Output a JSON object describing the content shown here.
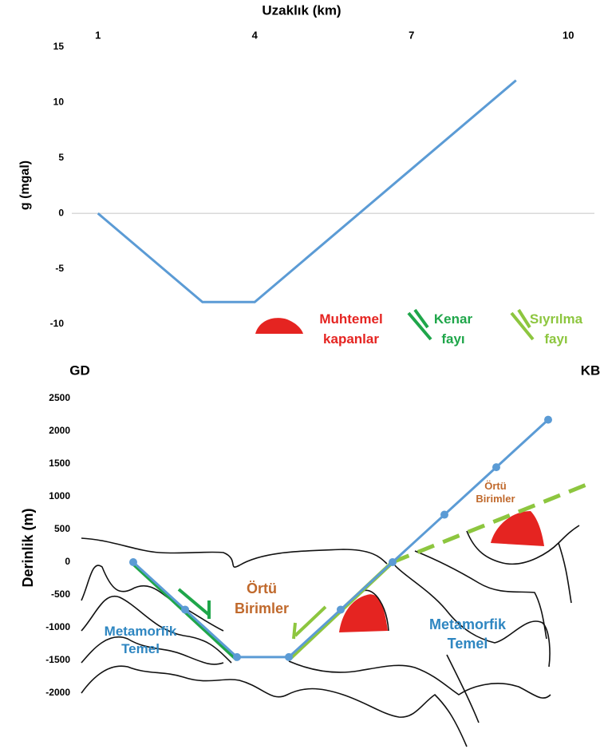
{
  "chart_data": [
    {
      "type": "line",
      "x_label": "Uzaklık (km)",
      "y_label": "g (mgal)",
      "x": [
        1,
        3,
        4,
        9
      ],
      "values": [
        0,
        -8,
        -8,
        12
      ],
      "color": "#5b9bd5",
      "xlim": [
        0.5,
        10.5
      ],
      "xticks": [
        1,
        4,
        7,
        10
      ],
      "ylim": [
        -10,
        15
      ],
      "yticks": [
        -10,
        -5,
        0,
        5,
        10,
        15
      ],
      "grid": false
    },
    {
      "type": "line",
      "y_label": "Derinlik (m)",
      "x": [
        1,
        2,
        3,
        4,
        5,
        6,
        7,
        8,
        9
      ],
      "values": [
        0,
        -725,
        -1450,
        -1450,
        -725,
        0,
        725,
        1450,
        2175
      ],
      "color": "#5b9bd5",
      "xlim": [
        0,
        10
      ],
      "ylim": [
        -2000,
        2500
      ],
      "yticks": [
        -2000,
        -1500,
        -1000,
        -500,
        0,
        500,
        1000,
        1500,
        2000,
        2500
      ],
      "grid": false,
      "annotations": {
        "left": "GD",
        "right": "KB",
        "cover": [
          [
            "Örtü",
            "Birimler"
          ],
          [
            "Örtü",
            "Birimler"
          ]
        ],
        "basement": [
          [
            "Metamorfik",
            "Temel"
          ],
          [
            "Metamorfik",
            "Temel"
          ]
        ]
      },
      "legend": [
        {
          "lines": [
            "Muhtemel",
            "kapanlar"
          ],
          "color": "#e52421"
        },
        {
          "lines": [
            "Kenar",
            "fayı"
          ],
          "color": "#1fa64a"
        },
        {
          "lines": [
            "Sıyrılma",
            "fayı"
          ],
          "color": "#8dc63f"
        }
      ]
    }
  ]
}
